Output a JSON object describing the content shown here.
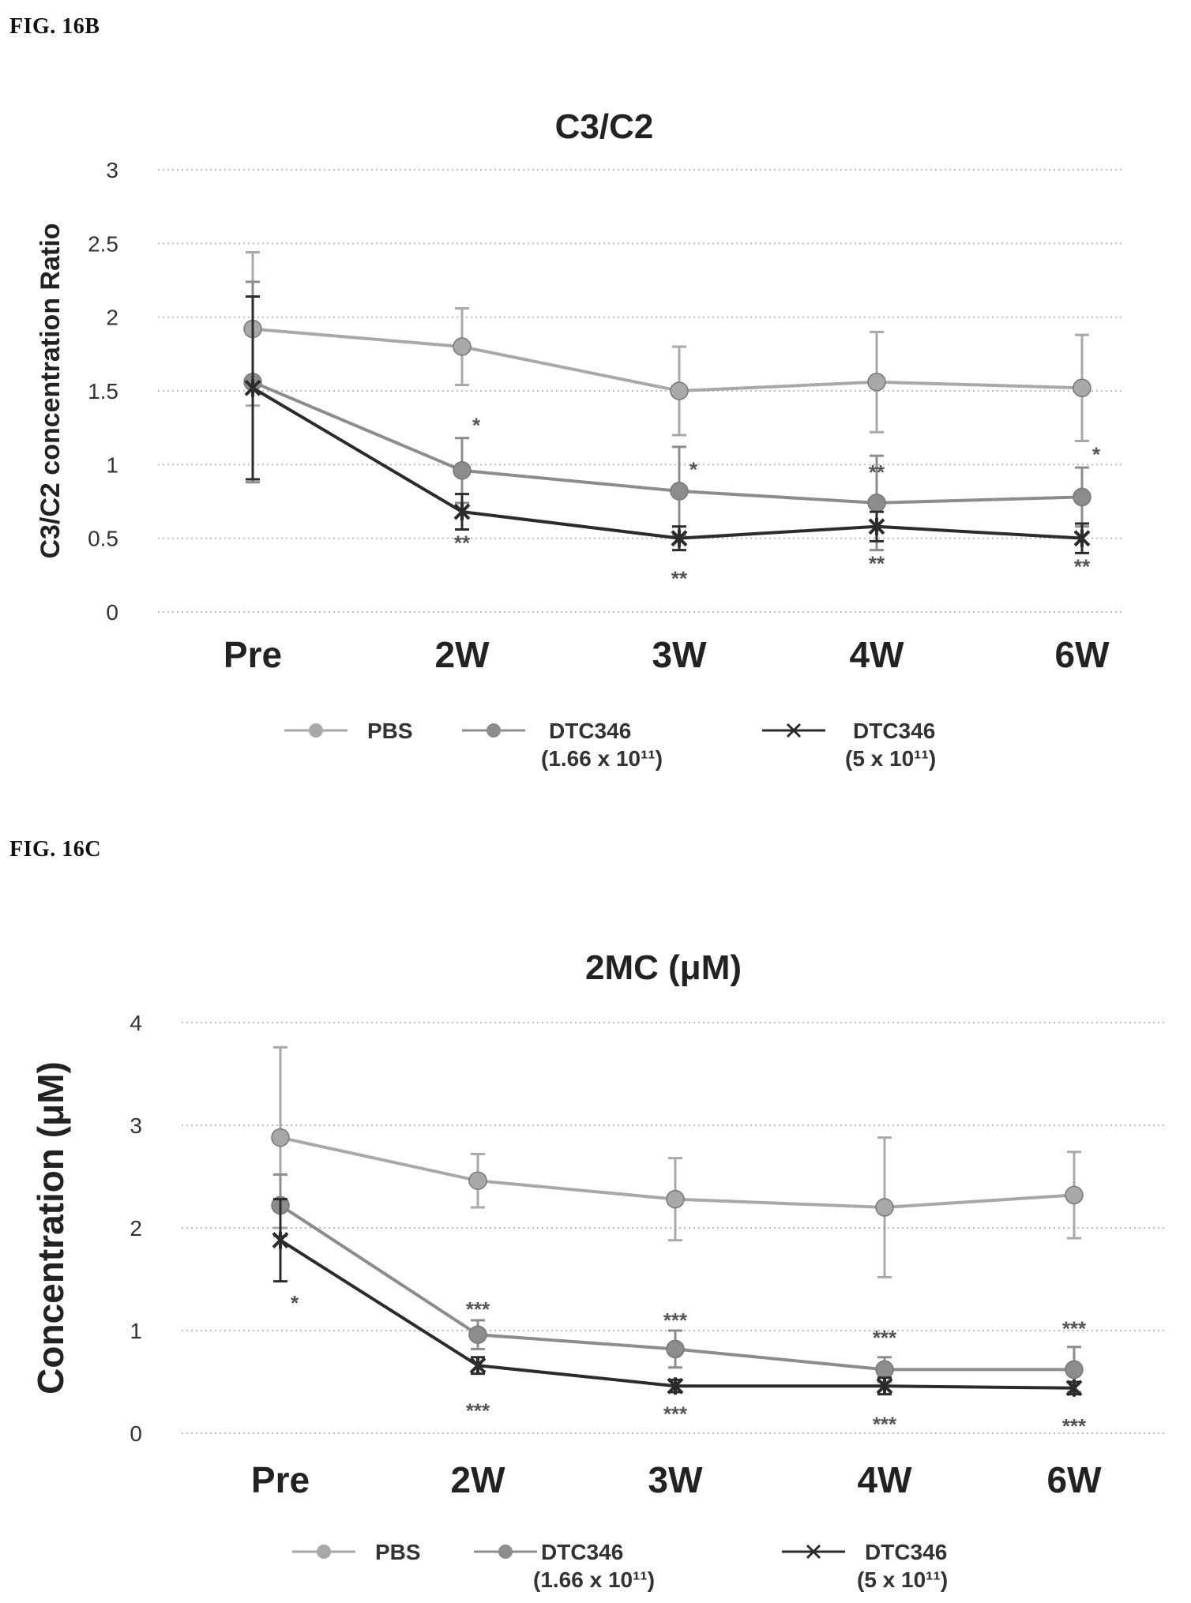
{
  "figures": [
    {
      "label": "FIG. 16B",
      "chart_data": {
        "type": "line",
        "title": "C3/C2",
        "ylabel": "C3/C2 concentration Ratio",
        "xlabel": "",
        "categories": [
          "Pre",
          "2W",
          "3W",
          "4W",
          "6W"
        ],
        "ylim": [
          0,
          3
        ],
        "yticks": [
          "0",
          "0.5",
          "1",
          "1.5",
          "2",
          "2.5",
          "3"
        ],
        "grid": true,
        "legend_placement": "bottom",
        "series": [
          {
            "name": "PBS",
            "name_line2": "",
            "color": "#a8a8a8",
            "values": [
              1.92,
              1.8,
              1.5,
              1.56,
              1.52
            ],
            "err": [
              0.52,
              0.26,
              0.3,
              0.34,
              0.36
            ]
          },
          {
            "name": "DTC346",
            "name_line2": "(1.66 x 10¹¹)",
            "color": "#8c8c8c",
            "values": [
              1.56,
              0.96,
              0.82,
              0.74,
              0.78
            ],
            "err": [
              0.68,
              0.22,
              0.3,
              0.32,
              0.2
            ]
          },
          {
            "name": "DTC346",
            "name_line2": "(5 x 10¹¹)",
            "color": "#2b2b2b",
            "values": [
              1.52,
              0.68,
              0.5,
              0.58,
              0.5
            ],
            "err": [
              0.62,
              0.12,
              0.08,
              0.1,
              0.1
            ]
          }
        ],
        "annotations": [
          {
            "text": "*",
            "x": "2W",
            "y": 1.22
          },
          {
            "text": "**",
            "x": "2W",
            "y": 0.42
          },
          {
            "text": "*",
            "x": "3W",
            "y": 0.92
          },
          {
            "text": "**",
            "x": "3W",
            "y": 0.18
          },
          {
            "text": "**",
            "x": "4W",
            "y": 0.9
          },
          {
            "text": "**",
            "x": "4W",
            "y": 0.28
          },
          {
            "text": "*",
            "x": "6W",
            "y": 1.02
          },
          {
            "text": "**",
            "x": "6W",
            "y": 0.26
          }
        ]
      }
    },
    {
      "label": "FIG. 16C",
      "chart_data": {
        "type": "line",
        "title": "2MC (μM)",
        "ylabel": "Concentration (μM)",
        "xlabel": "",
        "categories": [
          "Pre",
          "2W",
          "3W",
          "4W",
          "6W"
        ],
        "ylim": [
          0,
          4
        ],
        "yticks": [
          "0",
          "1",
          "2",
          "3",
          "4"
        ],
        "grid": true,
        "legend_placement": "bottom",
        "series": [
          {
            "name": "PBS",
            "name_line2": "",
            "color": "#a8a8a8",
            "values": [
              2.88,
              2.46,
              2.28,
              2.2,
              2.32
            ],
            "err": [
              0.88,
              0.26,
              0.4,
              0.68,
              0.42
            ]
          },
          {
            "name": "DTC346",
            "name_line2": "(1.66 x 10¹¹)",
            "color": "#8c8c8c",
            "values": [
              2.22,
              0.96,
              0.82,
              0.62,
              0.62
            ],
            "err": [
              0.3,
              0.14,
              0.18,
              0.12,
              0.22
            ]
          },
          {
            "name": "DTC346",
            "name_line2": "(5 x 10¹¹)",
            "color": "#2b2b2b",
            "values": [
              1.88,
              0.66,
              0.46,
              0.46,
              0.44
            ],
            "err": [
              0.4,
              0.08,
              0.06,
              0.08,
              0.06
            ]
          }
        ],
        "annotations": [
          {
            "text": "*",
            "x": "Pre",
            "y": 1.2
          },
          {
            "text": "***",
            "x": "2W",
            "y": 1.14
          },
          {
            "text": "***",
            "x": "2W",
            "y": 0.15
          },
          {
            "text": "***",
            "x": "3W",
            "y": 1.03
          },
          {
            "text": "***",
            "x": "3W",
            "y": 0.12
          },
          {
            "text": "***",
            "x": "4W",
            "y": 0.86
          },
          {
            "text": "***",
            "x": "4W",
            "y": 0.02
          },
          {
            "text": "***",
            "x": "6W",
            "y": 0.95
          },
          {
            "text": "***",
            "x": "6W",
            "y": 0.0
          }
        ]
      }
    }
  ]
}
